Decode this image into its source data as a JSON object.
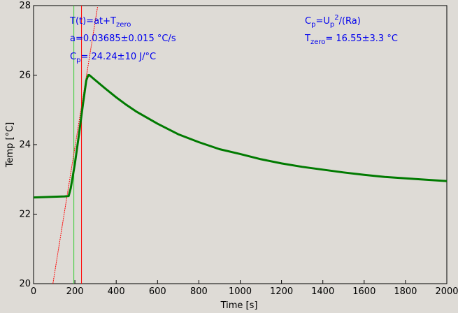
{
  "chart_data": {
    "type": "line",
    "xlabel": "Time [s]",
    "ylabel": "Temp [°C]",
    "xlim": [
      0,
      2000
    ],
    "ylim": [
      20,
      28
    ],
    "x_ticks": [
      "0",
      "200",
      "400",
      "600",
      "800",
      "1000",
      "1200",
      "1400",
      "1600",
      "1800",
      "2000"
    ],
    "y_ticks": [
      "20",
      "22",
      "24",
      "26",
      "28"
    ],
    "grid": false,
    "colors": {
      "series": "#007a00",
      "fit": "#ff0000",
      "start_marker": "#33cc33",
      "end_marker": "#ff0000",
      "annotation": "#0000ee",
      "background": "#dedbd6"
    },
    "markers": {
      "start_x": 195,
      "end_x": 232
    },
    "fit_line": {
      "slope": 0.03685,
      "intercept": 16.55,
      "x_range": [
        90,
        310
      ]
    },
    "series": [
      {
        "x": [
          0,
          50,
          100,
          150,
          170,
          180,
          200,
          220,
          240,
          255,
          265,
          270,
          280,
          300,
          350,
          400,
          450,
          500,
          600,
          700,
          800,
          900,
          1000,
          1100,
          1200,
          1300,
          1400,
          1500,
          1600,
          1700,
          1800,
          1900,
          2000
        ],
        "y": [
          22.48,
          22.49,
          22.5,
          22.51,
          22.52,
          22.75,
          23.45,
          24.3,
          25.2,
          25.85,
          26.0,
          26.0,
          25.95,
          25.85,
          25.6,
          25.36,
          25.14,
          24.94,
          24.6,
          24.3,
          24.07,
          23.87,
          23.73,
          23.58,
          23.46,
          23.36,
          23.28,
          23.2,
          23.13,
          23.07,
          23.03,
          22.99,
          22.95
        ]
      }
    ]
  },
  "annotations": {
    "left": {
      "formula_main": "T(t)=at+T",
      "formula_sub": "zero",
      "slope": "a=0.03685±0.015 °C/s",
      "cp_main": "C",
      "cp_sub": "p",
      "cp_value": "= 24.24±10 J/°C"
    },
    "right": {
      "cp_main": "C",
      "cp_sub": "p",
      "cp_eq": "=U",
      "cp_up_sub": "p",
      "cp_up_sup": "2",
      "cp_tail": "/(Ra)",
      "tzero_main": "T",
      "tzero_sub": "zero",
      "tzero_value": "= 16.55±3.3 °C"
    }
  }
}
